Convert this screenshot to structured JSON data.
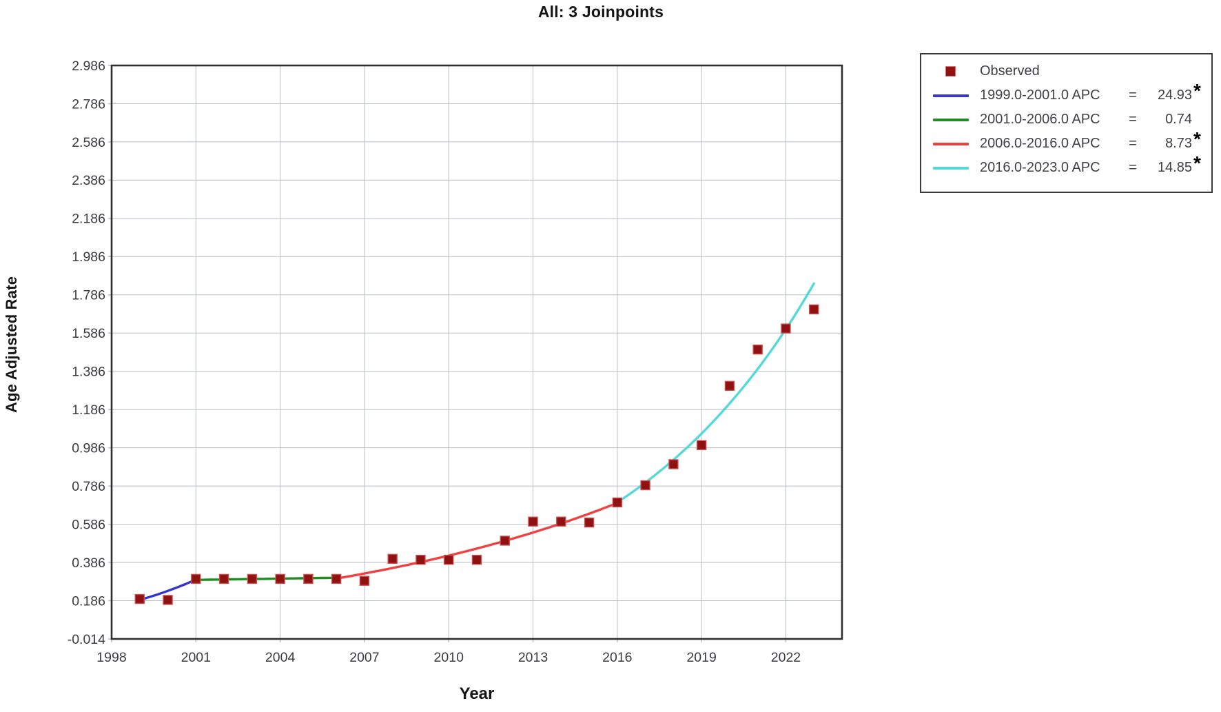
{
  "chart_data": {
    "type": "line",
    "title": "All: 3 Joinpoints",
    "xlabel": "Year",
    "ylabel": "Age Adjusted Rate",
    "xlim": [
      1998,
      2024
    ],
    "ylim": [
      -0.014,
      2.986
    ],
    "x_ticks": [
      1998,
      2001,
      2004,
      2007,
      2010,
      2013,
      2016,
      2019,
      2022
    ],
    "y_ticks": [
      2.986,
      2.786,
      2.586,
      2.386,
      2.186,
      1.986,
      1.786,
      1.586,
      1.386,
      1.186,
      0.986,
      0.786,
      0.586,
      0.386,
      0.186,
      -0.014
    ],
    "grid": true,
    "legend_position": "top-right",
    "observed": {
      "label": "Observed",
      "marker": "square",
      "color": "#8e1212",
      "x": [
        1999,
        2000,
        2001,
        2002,
        2003,
        2004,
        2005,
        2006,
        2007,
        2008,
        2009,
        2010,
        2011,
        2012,
        2013,
        2014,
        2015,
        2016,
        2017,
        2018,
        2019,
        2020,
        2021,
        2022,
        2023
      ],
      "y": [
        0.195,
        0.19,
        0.3,
        0.3,
        0.3,
        0.3,
        0.3,
        0.3,
        0.29,
        0.405,
        0.4,
        0.4,
        0.4,
        0.5,
        0.6,
        0.6,
        0.595,
        0.7,
        0.79,
        0.9,
        1.0,
        1.31,
        1.5,
        1.61,
        1.71
      ]
    },
    "segments": [
      {
        "label": "1999.0-2001.0 APC",
        "x0": 1999,
        "x1": 2001,
        "y0": 0.19,
        "apc": 24.93,
        "significant": true,
        "color": "#3535cf"
      },
      {
        "label": "2001.0-2006.0 APC",
        "x0": 2001,
        "x1": 2006,
        "y0": 0.295,
        "apc": 0.74,
        "significant": false,
        "color": "#1e8c1e"
      },
      {
        "label": "2006.0-2016.0 APC",
        "x0": 2006,
        "x1": 2016,
        "y0": 0.302,
        "apc": 8.73,
        "significant": true,
        "color": "#f04141"
      },
      {
        "label": "2016.0-2023.0 APC",
        "x0": 2016,
        "x1": 2023,
        "y0": 0.7,
        "apc": 14.85,
        "significant": true,
        "color": "#55d8d8"
      }
    ]
  },
  "legend": {
    "items": [
      {
        "label": "Observed",
        "eq": "",
        "value": "",
        "asterisk": "",
        "color": "#8e1212",
        "swatch": "marker"
      },
      {
        "label": "1999.0-2001.0 APC",
        "eq": "=",
        "value": "24.93",
        "asterisk": "*",
        "color": "#3535cf",
        "swatch": "line"
      },
      {
        "label": "2001.0-2006.0 APC",
        "eq": "=",
        "value": "0.74",
        "asterisk": "",
        "color": "#1e8c1e",
        "swatch": "line"
      },
      {
        "label": "2006.0-2016.0 APC",
        "eq": "=",
        "value": "8.73",
        "asterisk": "*",
        "color": "#f04141",
        "swatch": "line"
      },
      {
        "label": "2016.0-2023.0 APC",
        "eq": "=",
        "value": "14.85",
        "asterisk": "*",
        "color": "#55d8d8",
        "swatch": "line"
      }
    ]
  },
  "colors": {
    "frame": "#2e2e33",
    "gridline": "#b9bdc7",
    "tick_text": "#3a3a43",
    "marker_halo": "#cf4a4a"
  }
}
